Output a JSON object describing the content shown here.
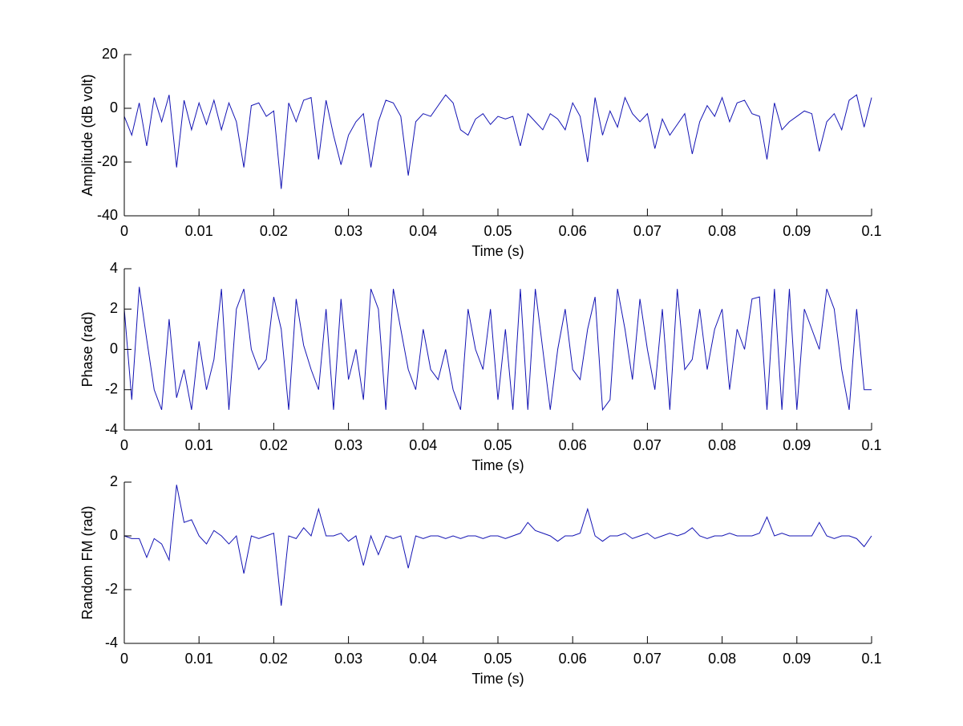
{
  "chart_data": [
    {
      "type": "line",
      "xlabel": "Time (s)",
      "ylabel": "Amplitude (dB volt)",
      "color": "#1414b4",
      "xlim": [
        0,
        0.1
      ],
      "ylim": [
        -40,
        20
      ],
      "xticks": [
        0,
        0.01,
        0.02,
        0.03,
        0.04,
        0.05,
        0.06,
        0.07,
        0.08,
        0.09,
        0.1
      ],
      "yticks": [
        -40,
        -20,
        0,
        20
      ],
      "x": [
        0,
        0.001,
        0.002,
        0.003,
        0.004,
        0.005,
        0.006,
        0.007,
        0.008,
        0.009,
        0.01,
        0.011,
        0.012,
        0.013,
        0.014,
        0.015,
        0.016,
        0.017,
        0.018,
        0.019,
        0.02,
        0.021,
        0.022,
        0.023,
        0.024,
        0.025,
        0.026,
        0.027,
        0.028,
        0.029,
        0.03,
        0.031,
        0.032,
        0.033,
        0.034,
        0.035,
        0.036,
        0.037,
        0.038,
        0.039,
        0.04,
        0.041,
        0.042,
        0.043,
        0.044,
        0.045,
        0.046,
        0.047,
        0.048,
        0.049,
        0.05,
        0.051,
        0.052,
        0.053,
        0.054,
        0.055,
        0.056,
        0.057,
        0.058,
        0.059,
        0.06,
        0.061,
        0.062,
        0.063,
        0.064,
        0.065,
        0.066,
        0.067,
        0.068,
        0.069,
        0.07,
        0.071,
        0.072,
        0.073,
        0.074,
        0.075,
        0.076,
        0.077,
        0.078,
        0.079,
        0.08,
        0.081,
        0.082,
        0.083,
        0.084,
        0.085,
        0.086,
        0.087,
        0.088,
        0.089,
        0.09,
        0.091,
        0.092,
        0.093,
        0.094,
        0.095,
        0.096,
        0.097,
        0.098,
        0.099,
        0.1
      ],
      "values": [
        -3,
        -10,
        2,
        -14,
        4,
        -5,
        5,
        -22,
        3,
        -8,
        2,
        -6,
        3,
        -8,
        2,
        -5,
        -22,
        1,
        2,
        -3,
        -1,
        -30,
        2,
        -5,
        3,
        4,
        -19,
        3,
        -10,
        -21,
        -10,
        -5,
        -2,
        -22,
        -5,
        3,
        2,
        -3,
        -25,
        -5,
        -2,
        -3,
        1,
        5,
        2,
        -8,
        -10,
        -4,
        -2,
        -6,
        -3,
        -4,
        -3,
        -14,
        -2,
        -5,
        -8,
        -2,
        -4,
        -8,
        2,
        -3,
        -20,
        4,
        -10,
        -1,
        -7,
        4,
        -2,
        -5,
        -2,
        -15,
        -4,
        -10,
        -6,
        -2,
        -17,
        -5,
        1,
        -3,
        4,
        -5,
        2,
        3,
        -2,
        -3,
        -19,
        2,
        -8,
        -5,
        -3,
        -1,
        -2,
        -16,
        -5,
        -2,
        -8,
        3,
        5,
        -7,
        4
      ]
    },
    {
      "type": "line",
      "xlabel": "Time (s)",
      "ylabel": "Phase (rad)",
      "color": "#1414b4",
      "xlim": [
        0,
        0.1
      ],
      "ylim": [
        -4,
        4
      ],
      "xticks": [
        0,
        0.01,
        0.02,
        0.03,
        0.04,
        0.05,
        0.06,
        0.07,
        0.08,
        0.09,
        0.1
      ],
      "yticks": [
        -4,
        -2,
        0,
        2,
        4
      ],
      "x": [
        0,
        0.001,
        0.002,
        0.003,
        0.004,
        0.005,
        0.006,
        0.007,
        0.008,
        0.009,
        0.01,
        0.011,
        0.012,
        0.013,
        0.014,
        0.015,
        0.016,
        0.017,
        0.018,
        0.019,
        0.02,
        0.021,
        0.022,
        0.023,
        0.024,
        0.025,
        0.026,
        0.027,
        0.028,
        0.029,
        0.03,
        0.031,
        0.032,
        0.033,
        0.034,
        0.035,
        0.036,
        0.037,
        0.038,
        0.039,
        0.04,
        0.041,
        0.042,
        0.043,
        0.044,
        0.045,
        0.046,
        0.047,
        0.048,
        0.049,
        0.05,
        0.051,
        0.052,
        0.053,
        0.054,
        0.055,
        0.056,
        0.057,
        0.058,
        0.059,
        0.06,
        0.061,
        0.062,
        0.063,
        0.064,
        0.065,
        0.066,
        0.067,
        0.068,
        0.069,
        0.07,
        0.071,
        0.072,
        0.073,
        0.074,
        0.075,
        0.076,
        0.077,
        0.078,
        0.079,
        0.08,
        0.081,
        0.082,
        0.083,
        0.084,
        0.085,
        0.086,
        0.087,
        0.088,
        0.089,
        0.09,
        0.091,
        0.092,
        0.093,
        0.094,
        0.095,
        0.096,
        0.097,
        0.098,
        0.099,
        0.1
      ],
      "values": [
        2,
        -2.5,
        3.1,
        0.5,
        -2,
        -3,
        1.5,
        -2.4,
        -1,
        -3,
        0.4,
        -2,
        -0.5,
        3,
        -3,
        2,
        3,
        0,
        -1,
        -0.5,
        2.6,
        1,
        -3,
        2.5,
        0.2,
        -1,
        -2,
        2,
        -3,
        2.5,
        -1.5,
        0,
        -2.5,
        3,
        2,
        -3,
        3,
        1,
        -1,
        -2,
        1,
        -1,
        -1.5,
        0,
        -2,
        -3,
        2,
        0,
        -1,
        2,
        -2.5,
        1,
        -3,
        3,
        -3,
        3,
        0,
        -3,
        0,
        2,
        -1,
        -1.5,
        1,
        2.6,
        -3,
        -2.5,
        3,
        1,
        -1.5,
        2.5,
        0,
        -2,
        2,
        -3,
        3,
        -1,
        -0.5,
        2,
        -1,
        1,
        2,
        -2,
        1,
        0,
        2.5,
        2.6,
        -3,
        3,
        -3,
        3,
        -3,
        2,
        1,
        0,
        3,
        2,
        -1,
        -3,
        2,
        -2,
        -2
      ]
    },
    {
      "type": "line",
      "xlabel": "Time (s)",
      "ylabel": "Random FM (rad)",
      "color": "#1414b4",
      "xlim": [
        0,
        0.1
      ],
      "ylim": [
        -4,
        2
      ],
      "xticks": [
        0,
        0.01,
        0.02,
        0.03,
        0.04,
        0.05,
        0.06,
        0.07,
        0.08,
        0.09,
        0.1
      ],
      "yticks": [
        -4,
        -2,
        0,
        2
      ],
      "x": [
        0,
        0.001,
        0.002,
        0.003,
        0.004,
        0.005,
        0.006,
        0.007,
        0.008,
        0.009,
        0.01,
        0.011,
        0.012,
        0.013,
        0.014,
        0.015,
        0.016,
        0.017,
        0.018,
        0.019,
        0.02,
        0.021,
        0.022,
        0.023,
        0.024,
        0.025,
        0.026,
        0.027,
        0.028,
        0.029,
        0.03,
        0.031,
        0.032,
        0.033,
        0.034,
        0.035,
        0.036,
        0.037,
        0.038,
        0.039,
        0.04,
        0.041,
        0.042,
        0.043,
        0.044,
        0.045,
        0.046,
        0.047,
        0.048,
        0.049,
        0.05,
        0.051,
        0.052,
        0.053,
        0.054,
        0.055,
        0.056,
        0.057,
        0.058,
        0.059,
        0.06,
        0.061,
        0.062,
        0.063,
        0.064,
        0.065,
        0.066,
        0.067,
        0.068,
        0.069,
        0.07,
        0.071,
        0.072,
        0.073,
        0.074,
        0.075,
        0.076,
        0.077,
        0.078,
        0.079,
        0.08,
        0.081,
        0.082,
        0.083,
        0.084,
        0.085,
        0.086,
        0.087,
        0.088,
        0.089,
        0.09,
        0.091,
        0.092,
        0.093,
        0.094,
        0.095,
        0.096,
        0.097,
        0.098,
        0.099,
        0.1
      ],
      "values": [
        0,
        -0.1,
        -0.1,
        -0.8,
        -0.1,
        -0.3,
        -0.9,
        1.9,
        0.5,
        0.6,
        0,
        -0.3,
        0.2,
        0,
        -0.3,
        0,
        -1.4,
        0,
        -0.1,
        0,
        0.1,
        -2.6,
        0,
        -0.1,
        0.3,
        0,
        1,
        0,
        0,
        0.1,
        -0.2,
        0,
        -1.1,
        0,
        -0.7,
        0,
        -0.1,
        0,
        -1.2,
        0,
        -0.1,
        0,
        0,
        -0.1,
        0,
        -0.1,
        0,
        0,
        -0.1,
        0,
        0,
        -0.1,
        0,
        0.1,
        0.5,
        0.2,
        0.1,
        0,
        -0.2,
        0,
        0,
        0.1,
        1,
        0,
        -0.2,
        0,
        0,
        0.1,
        -0.1,
        0,
        0.1,
        -0.1,
        0,
        0.1,
        0,
        0.1,
        0.3,
        0,
        -0.1,
        0,
        0,
        0.1,
        0,
        0,
        0,
        0.1,
        0.7,
        0,
        0.1,
        0,
        0,
        0,
        0,
        0.5,
        0,
        -0.1,
        0,
        0,
        -0.1,
        -0.4,
        0
      ]
    }
  ]
}
